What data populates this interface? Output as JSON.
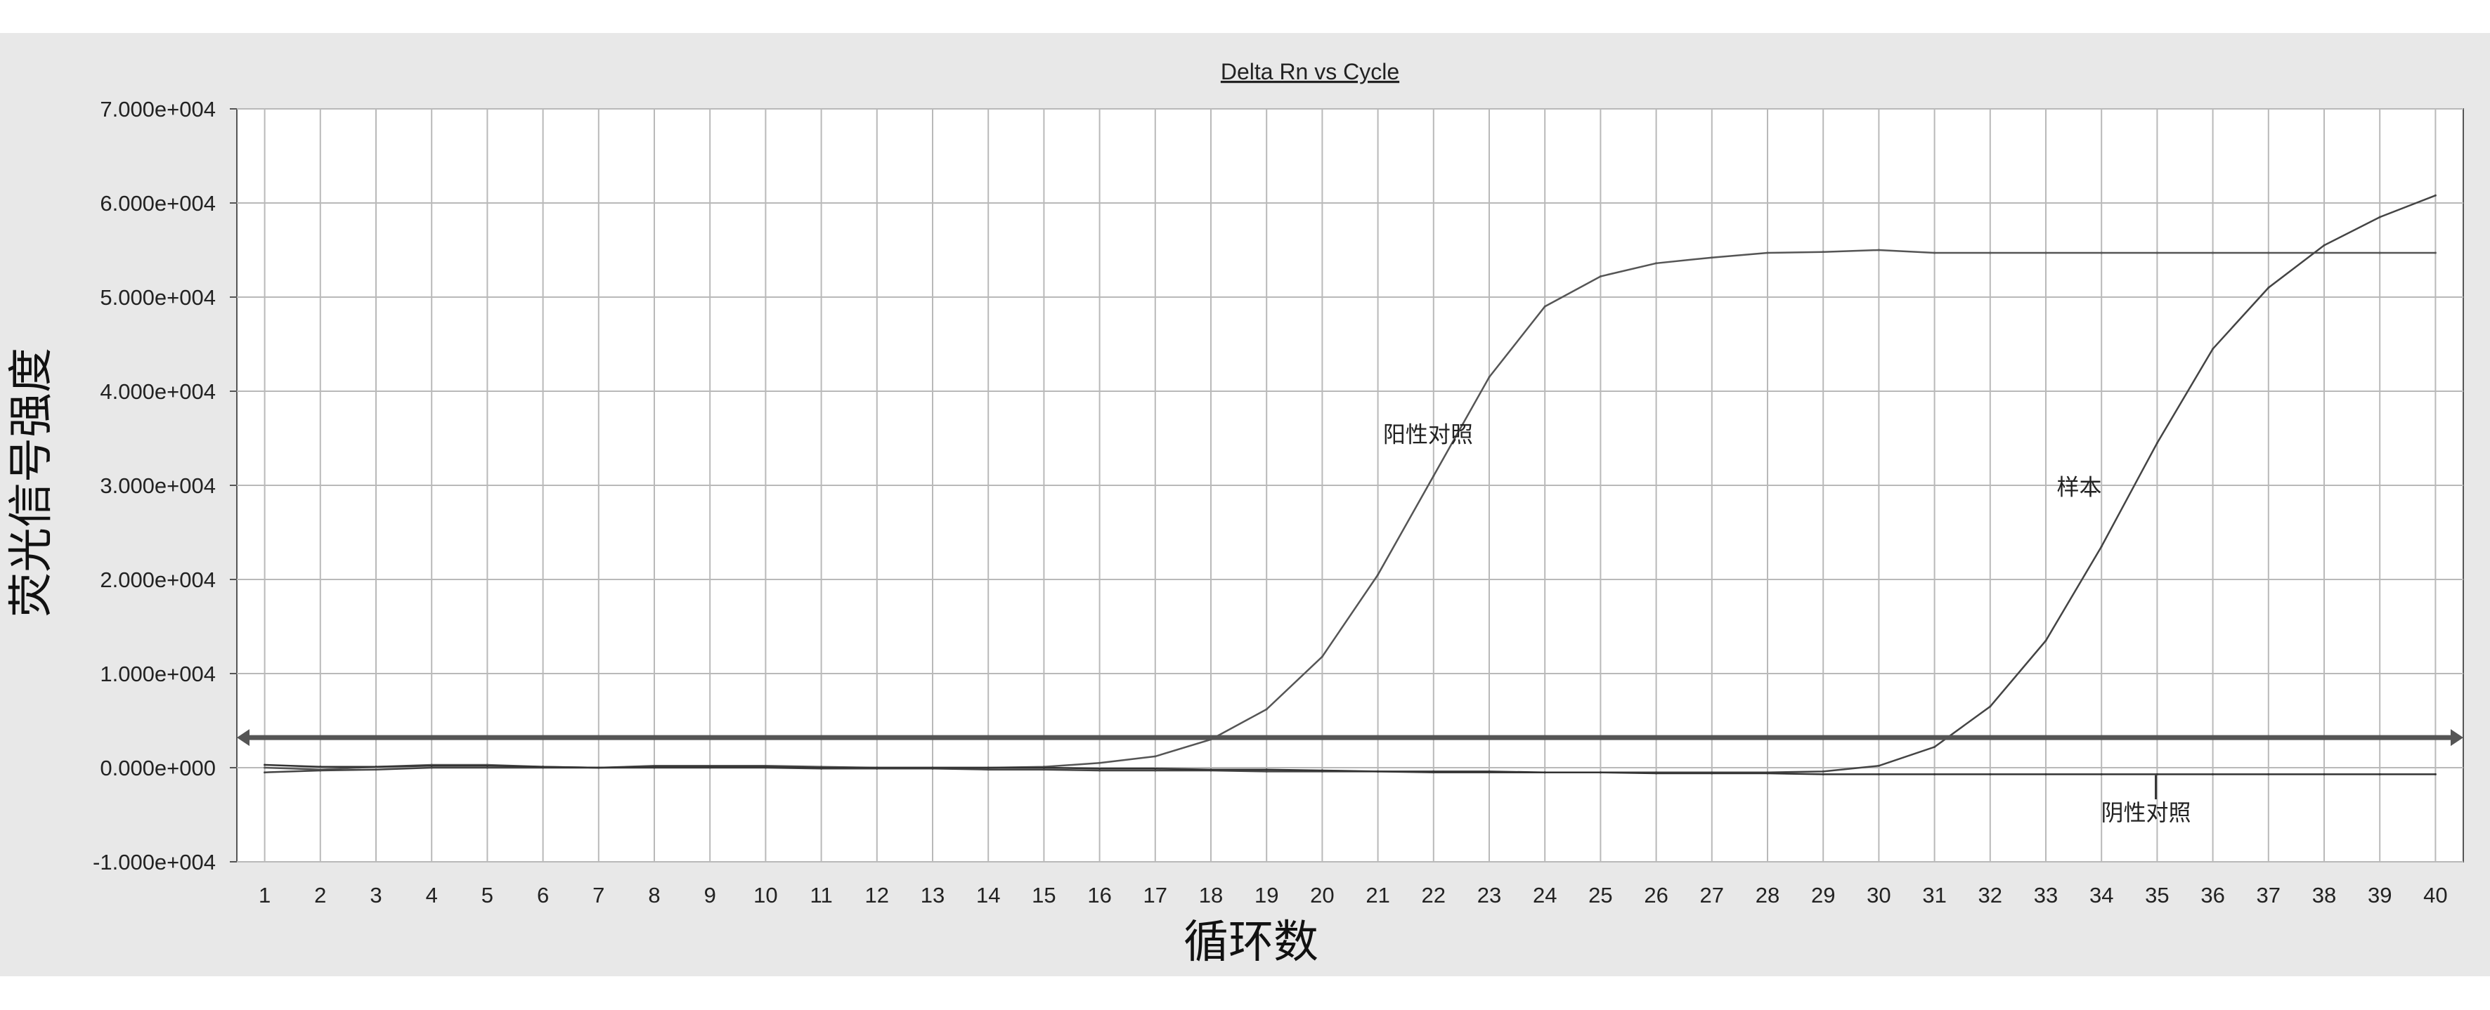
{
  "chart_data": {
    "type": "line",
    "title": "Delta Rn vs Cycle",
    "xlabel": "循环数",
    "ylabel": "荧光信号强度",
    "xlim": [
      0.5,
      40.5
    ],
    "ylim": [
      -10000,
      70000
    ],
    "x_ticks": [
      1,
      2,
      3,
      4,
      5,
      6,
      7,
      8,
      9,
      10,
      11,
      12,
      13,
      14,
      15,
      16,
      17,
      18,
      19,
      20,
      21,
      22,
      23,
      24,
      25,
      26,
      27,
      28,
      29,
      30,
      31,
      32,
      33,
      34,
      35,
      36,
      37,
      38,
      39,
      40
    ],
    "y_ticks": [
      {
        "value": 70000,
        "label": "7.000e+004"
      },
      {
        "value": 60000,
        "label": "6.000e+004"
      },
      {
        "value": 50000,
        "label": "5.000e+004"
      },
      {
        "value": 40000,
        "label": "4.000e+004"
      },
      {
        "value": 30000,
        "label": "3.000e+004"
      },
      {
        "value": 20000,
        "label": "2.000e+004"
      },
      {
        "value": 10000,
        "label": "1.000e+004"
      },
      {
        "value": 0,
        "label": "0.000e+000"
      },
      {
        "value": -10000,
        "label": "-1.000e+004"
      }
    ],
    "grid": true,
    "threshold": 3200,
    "series": [
      {
        "name": "阳性对照",
        "x": [
          1,
          2,
          3,
          4,
          5,
          6,
          7,
          8,
          9,
          10,
          11,
          12,
          13,
          14,
          15,
          16,
          17,
          18,
          19,
          20,
          21,
          22,
          23,
          24,
          25,
          26,
          27,
          28,
          29,
          30,
          31,
          32,
          33,
          34,
          35,
          36,
          37,
          38,
          39,
          40
        ],
        "values": [
          0,
          -200,
          100,
          300,
          300,
          100,
          0,
          200,
          200,
          200,
          100,
          0,
          0,
          0,
          100,
          500,
          1200,
          3000,
          6200,
          11800,
          20500,
          31000,
          41500,
          49000,
          52200,
          53600,
          54200,
          54700,
          54800,
          55000,
          54700,
          54700,
          54700,
          54700,
          54700,
          54700,
          54700,
          54700,
          54700,
          54700
        ]
      },
      {
        "name": "样本",
        "x": [
          1,
          2,
          3,
          4,
          5,
          6,
          7,
          8,
          9,
          10,
          11,
          12,
          13,
          14,
          15,
          16,
          17,
          18,
          19,
          20,
          21,
          22,
          23,
          24,
          25,
          26,
          27,
          28,
          29,
          30,
          31,
          32,
          33,
          34,
          35,
          36,
          37,
          38,
          39,
          40
        ],
        "values": [
          -500,
          -300,
          -200,
          0,
          0,
          0,
          0,
          0,
          0,
          0,
          -100,
          -100,
          -100,
          -200,
          -200,
          -300,
          -300,
          -300,
          -400,
          -400,
          -400,
          -500,
          -500,
          -500,
          -500,
          -500,
          -500,
          -500,
          -400,
          200,
          2200,
          6500,
          13500,
          23500,
          34500,
          44500,
          51000,
          55500,
          58500,
          60800
        ]
      },
      {
        "name": "阴性对照",
        "x": [
          1,
          2,
          3,
          4,
          5,
          6,
          7,
          8,
          9,
          10,
          11,
          12,
          13,
          14,
          15,
          16,
          17,
          18,
          19,
          20,
          21,
          22,
          23,
          24,
          25,
          26,
          27,
          28,
          29,
          30,
          31,
          32,
          33,
          34,
          35,
          36,
          37,
          38,
          39,
          40
        ],
        "values": [
          300,
          100,
          100,
          200,
          200,
          100,
          0,
          100,
          100,
          100,
          0,
          0,
          0,
          0,
          0,
          -100,
          -100,
          -200,
          -200,
          -300,
          -400,
          -400,
          -400,
          -500,
          -500,
          -600,
          -600,
          -600,
          -700,
          -700,
          -700,
          -700,
          -700,
          -700,
          -700,
          -700,
          -700,
          -700,
          -700,
          -700
        ]
      }
    ],
    "annotations": [
      {
        "text": "阳性对照",
        "x": 21.9,
        "y": 34600
      },
      {
        "text": "样本",
        "x": 33.6,
        "y": 29000
      },
      {
        "text": "阴性对照",
        "x": 34.8,
        "y": -5600,
        "pointer_y": -800
      }
    ]
  }
}
